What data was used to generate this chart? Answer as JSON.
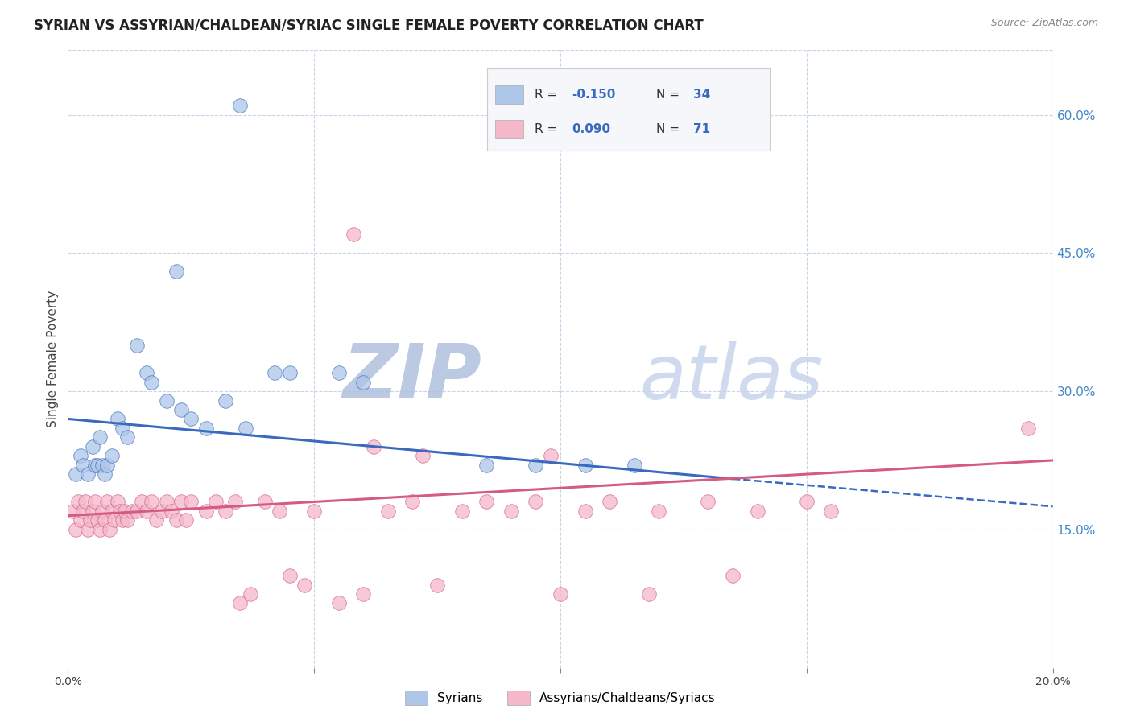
{
  "title": "SYRIAN VS ASSYRIAN/CHALDEAN/SYRIAC SINGLE FEMALE POVERTY CORRELATION CHART",
  "source": "Source: ZipAtlas.com",
  "ylabel": "Single Female Poverty",
  "xlim": [
    0.0,
    20.0
  ],
  "ylim": [
    0.0,
    67.0
  ],
  "x_tick_positions": [
    0.0,
    20.0
  ],
  "x_tick_labels": [
    "0.0%",
    "20.0%"
  ],
  "y_ticks_right": [
    15.0,
    30.0,
    45.0,
    60.0
  ],
  "y_tick_labels_right": [
    "15.0%",
    "30.0%",
    "45.0%",
    "60.0%"
  ],
  "syrian_color": "#aec6e8",
  "assyrian_color": "#f5b8cb",
  "syrian_R": -0.15,
  "syrian_N": 34,
  "assyrian_R": 0.09,
  "assyrian_N": 71,
  "trend_syrian_color": "#3a6abf",
  "trend_assyrian_color": "#d45c80",
  "watermark_zip": "ZIP",
  "watermark_atlas": "atlas",
  "watermark_color": "#cdd8ec",
  "background_color": "#ffffff",
  "grid_color": "#c8d4e8",
  "title_fontsize": 12,
  "axis_label_fontsize": 11,
  "tick_fontsize": 10,
  "legend_fontsize": 12,
  "syrian_x": [
    0.15,
    0.25,
    0.3,
    0.4,
    0.5,
    0.55,
    0.6,
    0.65,
    0.7,
    0.75,
    0.8,
    0.9,
    1.0,
    1.1,
    1.2,
    1.4,
    1.6,
    1.7,
    2.0,
    2.3,
    2.5,
    2.8,
    3.2,
    3.6,
    4.2,
    4.5,
    5.5,
    6.0,
    8.5,
    9.5,
    10.5,
    11.5,
    2.2,
    3.5
  ],
  "syrian_y": [
    21,
    23,
    22,
    21,
    24,
    22,
    22,
    25,
    22,
    21,
    22,
    23,
    27,
    26,
    25,
    35,
    32,
    31,
    29,
    28,
    27,
    26,
    29,
    26,
    32,
    32,
    32,
    31,
    22,
    22,
    22,
    22,
    43,
    61
  ],
  "assyrian_x": [
    0.1,
    0.15,
    0.2,
    0.25,
    0.3,
    0.35,
    0.4,
    0.45,
    0.5,
    0.55,
    0.6,
    0.65,
    0.7,
    0.75,
    0.8,
    0.85,
    0.9,
    0.95,
    1.0,
    1.05,
    1.1,
    1.15,
    1.2,
    1.3,
    1.4,
    1.5,
    1.6,
    1.7,
    1.8,
    1.9,
    2.0,
    2.1,
    2.2,
    2.3,
    2.4,
    2.5,
    2.8,
    3.0,
    3.2,
    3.4,
    3.5,
    3.7,
    4.0,
    4.3,
    4.8,
    5.0,
    5.5,
    6.0,
    6.5,
    7.0,
    7.5,
    8.0,
    8.5,
    9.0,
    9.5,
    10.0,
    10.5,
    11.0,
    12.0,
    13.0,
    14.0,
    15.0,
    15.5,
    6.2,
    7.2,
    9.8,
    5.8,
    19.5,
    11.8,
    4.5,
    13.5
  ],
  "assyrian_y": [
    17,
    15,
    18,
    16,
    17,
    18,
    15,
    16,
    17,
    18,
    16,
    15,
    17,
    16,
    18,
    15,
    17,
    16,
    18,
    17,
    16,
    17,
    16,
    17,
    17,
    18,
    17,
    18,
    16,
    17,
    18,
    17,
    16,
    18,
    16,
    18,
    17,
    18,
    17,
    18,
    7,
    8,
    18,
    17,
    9,
    17,
    7,
    8,
    17,
    18,
    9,
    17,
    18,
    17,
    18,
    8,
    17,
    18,
    17,
    18,
    17,
    18,
    17,
    24,
    23,
    23,
    47,
    26,
    8,
    10,
    10
  ],
  "syr_trend_x0": 0.0,
  "syr_trend_y0": 27.0,
  "syr_trend_x1": 13.5,
  "syr_trend_y1": 20.5,
  "syr_dash_x0": 13.5,
  "syr_dash_y0": 20.5,
  "syr_dash_x1": 20.0,
  "syr_dash_y1": 17.5,
  "ass_trend_x0": 0.0,
  "ass_trend_y0": 16.5,
  "ass_trend_x1": 20.0,
  "ass_trend_y1": 22.5
}
